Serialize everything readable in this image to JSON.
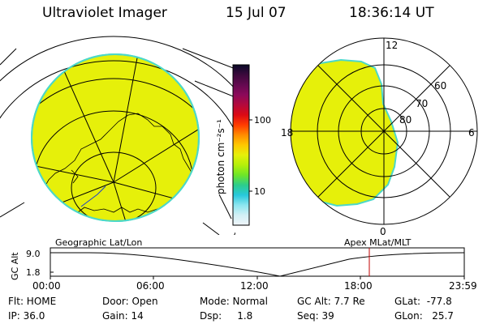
{
  "header": {
    "title": "Ultraviolet Imager",
    "date": "15 Jul 07",
    "time": "18:36:14 UT"
  },
  "colors": {
    "fill": "#e6f00a",
    "rim": "#4cd8c8",
    "line": "#000000",
    "marker": "#c00000"
  },
  "geo_panel": {
    "label": "Geographic Lat/Lon"
  },
  "polar_panel": {
    "label": "Apex MLat/MLT",
    "mlt_labels": {
      "top": "12",
      "left": "18",
      "right": "6",
      "bottom": "0"
    },
    "lat_labels": [
      "60",
      "70",
      "80"
    ]
  },
  "colorbar": {
    "unit_label": "photon cm⁻²s⁻¹",
    "ticks": [
      "100",
      "10"
    ],
    "colors": [
      "#0a0a28",
      "#3c0a3c",
      "#640a50",
      "#8c0a5a",
      "#b40a3c",
      "#dc0a14",
      "#ff3c00",
      "#ff8c00",
      "#ffc800",
      "#e6f00a",
      "#b4f00a",
      "#6ee628",
      "#2ccd8c",
      "#28c8dc",
      "#8ce6f0",
      "#d2f0f5",
      "#f0f5fa"
    ]
  },
  "timeline": {
    "ylabel": "GC Alt",
    "yticks": [
      "9.0",
      "1.8"
    ],
    "xticks": [
      "00:00",
      "06:00",
      "12:00",
      "18:00",
      "23:59"
    ],
    "current_time": "18:36"
  },
  "info": {
    "flt": "Flt: HOME",
    "ip": "IP: 36.0",
    "door": "Door: Open",
    "gain": "Gain: 14",
    "mode": "Mode: Normal",
    "dsp": "Dsp:     1.8",
    "gcalt": "GC Alt: 7.7 Re",
    "seq": "Seq: 39",
    "glat": "GLat:  -77.8",
    "glon": "GLon:   25.7"
  }
}
